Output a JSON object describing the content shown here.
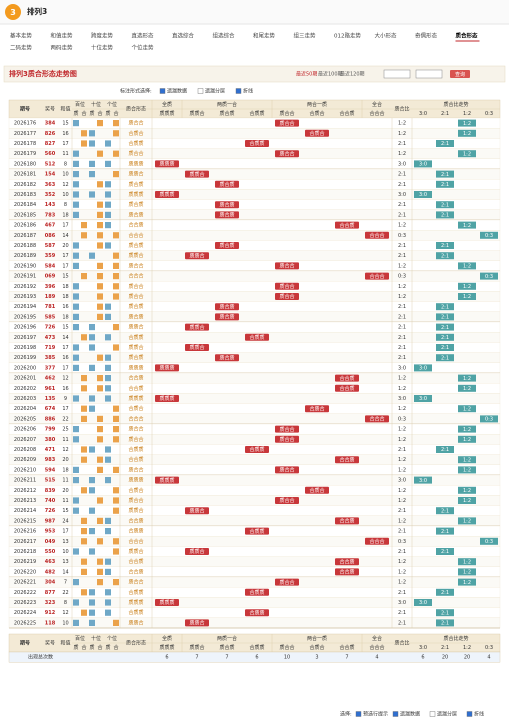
{
  "header": {
    "logo": "排列3"
  },
  "nav": [
    [
      "基本走势",
      "和值走势",
      "跨度走势",
      "直选形态",
      "直选综合",
      "组选综合",
      "和尾走势",
      "组三走势",
      "012路走势",
      "大小形态",
      "奇偶形态",
      "质合形态"
    ],
    [
      "二码走势",
      "两码走势",
      "十位走势",
      "个位走势"
    ]
  ],
  "active_nav": "质合形态",
  "title": "排列3质合形态走势图",
  "range_links": [
    "最近50期",
    "最近100期",
    "最近120期"
  ],
  "query": "查询",
  "options": {
    "label": "标注形式选择:",
    "items": [
      "遗漏数据",
      "遗漏分层",
      "折线"
    ]
  },
  "table": {
    "columns": {
      "period": "期号",
      "number": "奖号",
      "sum": "和值",
      "positions": [
        "百位",
        "十位",
        "个位"
      ],
      "prime": "质",
      "composite": "合",
      "shape": "质合形态",
      "groups": [
        {
          "name": "全质",
          "patterns": [
            "质质质"
          ]
        },
        {
          "name": "两质一合",
          "patterns": [
            "质质合",
            "质合质",
            "合质质"
          ]
        },
        {
          "name": "两合一质",
          "patterns": [
            "质合合",
            "合质合",
            "合合质"
          ]
        },
        {
          "name": "全合",
          "patterns": [
            "合合合"
          ]
        }
      ],
      "ratio": "质合比",
      "ratio_group": "质合比走势",
      "ratios": [
        "3:0",
        "2:1",
        "1:2",
        "0:3"
      ]
    },
    "rows": [
      [
        "2026176",
        "384",
        15,
        "质合合",
        "1:2"
      ],
      [
        "2026177",
        "826",
        16,
        "合质合",
        "1:2"
      ],
      [
        "2026178",
        "827",
        17,
        "合质质",
        "2:1"
      ],
      [
        "2026179",
        "560",
        11,
        "质合合",
        "1:2"
      ],
      [
        "2026180",
        "512",
        8,
        "质质质",
        "3:0"
      ],
      [
        "2026181",
        "154",
        10,
        "质质合",
        "2:1"
      ],
      [
        "2026182",
        "363",
        12,
        "质合质",
        "2:1"
      ],
      [
        "2026183",
        "352",
        10,
        "质质质",
        "3:0"
      ],
      [
        "2026184",
        "143",
        8,
        "质合质",
        "2:1"
      ],
      [
        "2026185",
        "783",
        18,
        "质合质",
        "2:1"
      ],
      [
        "2026186",
        "467",
        17,
        "合合质",
        "1:2"
      ],
      [
        "2026187",
        "086",
        14,
        "合合合",
        "0:3"
      ],
      [
        "2026188",
        "587",
        20,
        "质合质",
        "2:1"
      ],
      [
        "2026189",
        "359",
        17,
        "质质合",
        "2:1"
      ],
      [
        "2026190",
        "584",
        17,
        "质合合",
        "1:2"
      ],
      [
        "2026191",
        "069",
        15,
        "合合合",
        "0:3"
      ],
      [
        "2026192",
        "396",
        18,
        "质合合",
        "1:2"
      ],
      [
        "2026193",
        "189",
        18,
        "质合合",
        "1:2"
      ],
      [
        "2026194",
        "781",
        16,
        "质合质",
        "2:1"
      ],
      [
        "2026195",
        "585",
        18,
        "质合质",
        "2:1"
      ],
      [
        "2026196",
        "726",
        15,
        "质质合",
        "2:1"
      ],
      [
        "2026197",
        "473",
        14,
        "合质质",
        "2:1"
      ],
      [
        "2026198",
        "719",
        17,
        "质质合",
        "2:1"
      ],
      [
        "2026199",
        "385",
        16,
        "质合质",
        "2:1"
      ],
      [
        "2026200",
        "377",
        17,
        "质质质",
        "3:0"
      ],
      [
        "2026201",
        "462",
        12,
        "合合质",
        "1:2"
      ],
      [
        "2026202",
        "961",
        16,
        "合合质",
        "1:2"
      ],
      [
        "2026203",
        "135",
        9,
        "质质质",
        "3:0"
      ],
      [
        "2026204",
        "674",
        17,
        "合质合",
        "1:2"
      ],
      [
        "2026205",
        "886",
        22,
        "合合合",
        "0:3"
      ],
      [
        "2026206",
        "799",
        25,
        "质合合",
        "1:2"
      ],
      [
        "2026207",
        "380",
        11,
        "质合合",
        "1:2"
      ],
      [
        "2026208",
        "471",
        12,
        "合质质",
        "2:1"
      ],
      [
        "2026209",
        "983",
        20,
        "合合质",
        "1:2"
      ],
      [
        "2026210",
        "594",
        18,
        "质合合",
        "1:2"
      ],
      [
        "2026211",
        "515",
        11,
        "质质质",
        "3:0"
      ],
      [
        "2026212",
        "839",
        20,
        "合质合",
        "1:2"
      ],
      [
        "2026213",
        "740",
        11,
        "质合合",
        "1:2"
      ],
      [
        "2026214",
        "726",
        15,
        "质质合",
        "2:1"
      ],
      [
        "2026215",
        "987",
        24,
        "合合质",
        "1:2"
      ],
      [
        "2026216",
        "953",
        17,
        "合质质",
        "2:1"
      ],
      [
        "2026217",
        "049",
        13,
        "合合合",
        "0:3"
      ],
      [
        "2026218",
        "550",
        10,
        "质质合",
        "2:1"
      ],
      [
        "2026219",
        "463",
        13,
        "合合质",
        "1:2"
      ],
      [
        "2026220",
        "482",
        14,
        "合合质",
        "1:2"
      ],
      [
        "2026221",
        "304",
        7,
        "质合合",
        "1:2"
      ],
      [
        "2026222",
        "877",
        22,
        "合质质",
        "2:1"
      ],
      [
        "2026223",
        "323",
        8,
        "质质质",
        "3:0"
      ],
      [
        "2026224",
        "912",
        12,
        "合质质",
        "2:1"
      ],
      [
        "2026225",
        "118",
        10,
        "质质合",
        "2:1"
      ]
    ],
    "stats": {
      "label": "出现总次数",
      "pattern_counts": [
        6,
        7,
        7,
        6,
        10,
        3,
        7,
        4
      ],
      "ratio_counts": [
        6,
        20,
        20,
        4
      ]
    }
  },
  "bottom_options": {
    "label": "选择:",
    "items": [
      "预选行提示",
      "遗漏数据",
      "遗漏分层",
      "折线"
    ]
  }
}
